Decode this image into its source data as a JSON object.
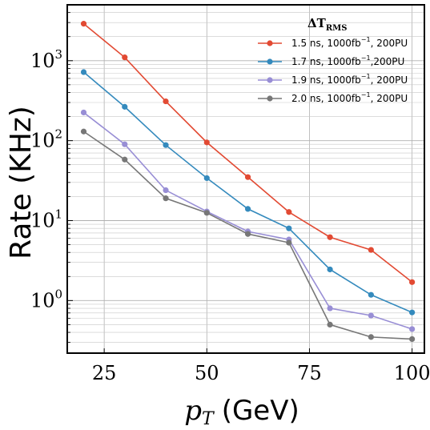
{
  "chart_data": {
    "type": "line",
    "yscale": "log",
    "xlabel_var": "p",
    "xlabel_sub": "T",
    "xlabel_unit": "(GeV)",
    "ylabel": "Rate (KHz)",
    "xlim": [
      16,
      103
    ],
    "ylim": [
      0.22,
      5000
    ],
    "xticks": [
      25,
      50,
      75,
      100
    ],
    "yticks": [
      {
        "value": 1,
        "base": "10",
        "exp": "0"
      },
      {
        "value": 10,
        "base": "10",
        "exp": "1"
      },
      {
        "value": 100,
        "base": "10",
        "exp": "2"
      },
      {
        "value": 1000,
        "base": "10",
        "exp": "3"
      }
    ],
    "grid": true,
    "legend": {
      "placement": "top-right",
      "title_main": "ΔT",
      "title_sub": "RMS"
    },
    "x": [
      20,
      30,
      40,
      50,
      60,
      70,
      80,
      90,
      100
    ],
    "series": [
      {
        "legend_pre": "1.5 ns, 1000fb",
        "legend_sup": "−1",
        "legend_post": ", 200PU",
        "color": "#e24a33",
        "values": [
          2900,
          1100,
          310,
          95,
          35,
          12.8,
          6.2,
          4.3,
          1.7
        ]
      },
      {
        "legend_pre": "1.7 ns, 1000fb",
        "legend_sup": "−1",
        "legend_post": ",200PU",
        "color": "#348abd",
        "values": [
          720,
          265,
          88,
          34,
          14,
          8,
          2.45,
          1.18,
          0.71
        ]
      },
      {
        "legend_pre": "1.9 ns, 1000fb",
        "legend_sup": "−1",
        "legend_post": ", 200PU",
        "color": "#988ed5",
        "values": [
          225,
          90,
          24,
          13,
          7.3,
          5.8,
          0.8,
          0.65,
          0.44
        ]
      },
      {
        "legend_pre": "2.0 ns, 1000fb",
        "legend_sup": "−1",
        "legend_post": ", 200PU",
        "color": "#777777",
        "values": [
          130,
          58,
          19,
          12.5,
          6.8,
          5.3,
          0.5,
          0.35,
          0.33
        ]
      }
    ]
  }
}
